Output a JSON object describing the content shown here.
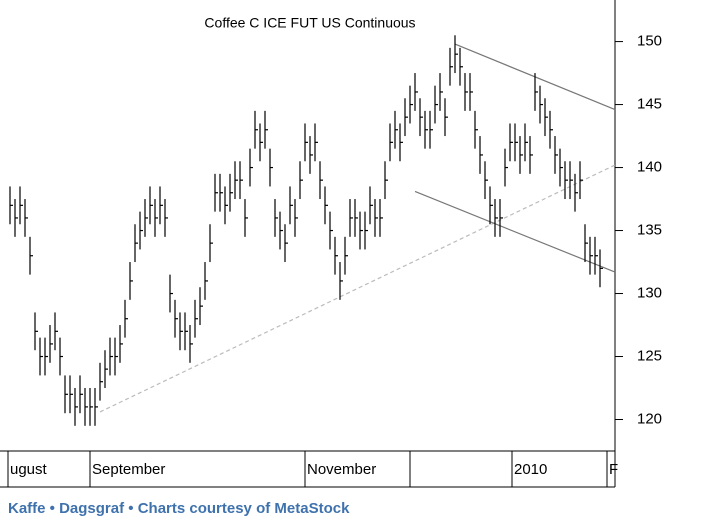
{
  "chart_data": {
    "type": "ohlc",
    "title": "Coffee C ICE FUT US Continuous",
    "ylim": [
      117.5,
      153.3
    ],
    "yticks": [
      120,
      125,
      130,
      135,
      140,
      145,
      150
    ],
    "color": "#000000",
    "x_ticks": [
      {
        "value": -0.4,
        "label": "ugust"
      },
      {
        "value": 16,
        "label": "September"
      },
      {
        "value": 59,
        "label": "November"
      },
      {
        "value": 80,
        "label": null
      },
      {
        "value": 100.4,
        "label": "2010"
      },
      {
        "value": 119.4,
        "label": "F"
      }
    ],
    "high": [
      138.5,
      137.5,
      138.5,
      137.5,
      134.5,
      128.5,
      126.5,
      126.5,
      127.5,
      128.5,
      126.5,
      123.5,
      123.5,
      122.5,
      123.5,
      122.5,
      122.5,
      122.5,
      124.5,
      125.5,
      126.5,
      126.5,
      127.5,
      129.5,
      132.5,
      135.5,
      136.5,
      137.5,
      138.5,
      137.5,
      138.5,
      137.5,
      131.5,
      129.5,
      128.5,
      128.5,
      127.5,
      129.5,
      130.5,
      132.5,
      135.5,
      139.5,
      139.5,
      138.5,
      139.5,
      140.5,
      140.5,
      137.5,
      141.5,
      144.5,
      143.5,
      144.5,
      141.5,
      137.5,
      136.5,
      135.5,
      138.5,
      137.5,
      140.5,
      143.5,
      142.5,
      143.5,
      140.5,
      138.5,
      136.5,
      134.5,
      132.5,
      134.5,
      137.5,
      137.5,
      136.5,
      136.5,
      138.5,
      137.5,
      137.5,
      140.5,
      143.5,
      144.5,
      143.5,
      145.5,
      146.5,
      147.5,
      145.5,
      144.5,
      144.5,
      146.5,
      147.5,
      145.5,
      149.5,
      150.5,
      149.5,
      147.5,
      147.5,
      144.5,
      142.5,
      140.5,
      138.5,
      137.5,
      137.5,
      141.5,
      143.5,
      143.5,
      142.5,
      143.5,
      142.5,
      147.5,
      146.5,
      145.5,
      144.5,
      142.5,
      141.5,
      140.5,
      140.5,
      139.5,
      140.5,
      135.5,
      134.5,
      134.5,
      133.5
    ],
    "low": [
      135.5,
      134.5,
      135.5,
      134.5,
      131.5,
      125.5,
      123.5,
      123.5,
      124.5,
      125.5,
      123.5,
      120.5,
      120.5,
      119.5,
      120.5,
      119.5,
      119.5,
      119.5,
      121.5,
      122.5,
      123.5,
      123.5,
      124.5,
      126.5,
      129.5,
      132.5,
      133.5,
      134.5,
      135.5,
      134.5,
      135.5,
      134.5,
      128.5,
      126.5,
      125.5,
      125.5,
      124.5,
      126.5,
      127.5,
      129.5,
      132.5,
      136.5,
      136.5,
      135.5,
      136.5,
      137.5,
      137.5,
      134.5,
      138.5,
      141.5,
      140.5,
      141.5,
      138.5,
      134.5,
      133.5,
      132.5,
      135.5,
      134.5,
      137.5,
      140.5,
      139.5,
      140.5,
      137.5,
      135.5,
      133.5,
      131.5,
      129.5,
      131.5,
      134.5,
      134.5,
      133.5,
      133.5,
      135.5,
      134.5,
      134.5,
      137.5,
      140.5,
      141.5,
      140.5,
      142.5,
      143.5,
      144.5,
      142.5,
      141.5,
      141.5,
      143.5,
      144.5,
      142.5,
      146.5,
      147.5,
      146.5,
      144.5,
      144.5,
      141.5,
      139.5,
      137.5,
      135.5,
      134.5,
      134.5,
      138.5,
      140.5,
      140.5,
      139.5,
      140.5,
      139.5,
      144.5,
      143.5,
      142.5,
      141.5,
      139.5,
      138.5,
      137.5,
      137.5,
      136.5,
      137.5,
      132.5,
      131.5,
      131.5,
      130.5
    ],
    "close": [
      137,
      136,
      137,
      136,
      133,
      127,
      125,
      125,
      126,
      127,
      125,
      122,
      122,
      121,
      122,
      121,
      121,
      121,
      123,
      124,
      125,
      125,
      126,
      128,
      131,
      134,
      135,
      136,
      137,
      136,
      137,
      136,
      130,
      128,
      127,
      127,
      126,
      128,
      129,
      131,
      134,
      138,
      138,
      137,
      138,
      139,
      139,
      136,
      140,
      143,
      142,
      143,
      140,
      136,
      135,
      134,
      137,
      136,
      139,
      142,
      141,
      142,
      139,
      137,
      135,
      133,
      131,
      133,
      136,
      136,
      135,
      135,
      137,
      136,
      136,
      139,
      142,
      143,
      142,
      144,
      145,
      146,
      144,
      143,
      143,
      145,
      146,
      144,
      148,
      149,
      148,
      146,
      146,
      143,
      141,
      139,
      137,
      136,
      136,
      140,
      142,
      142,
      141,
      142,
      141,
      146,
      145,
      144,
      143,
      141,
      140,
      139,
      139,
      138,
      139,
      134,
      133,
      133,
      132
    ],
    "trendlines": [
      {
        "x": [
          18,
          121
        ],
        "y": [
          120.6,
          140.2
        ],
        "style": "dashed",
        "color": "#bbbbbb"
      },
      {
        "x": [
          89,
          121
        ],
        "y": [
          149.8,
          144.6
        ],
        "style": "solid",
        "color": "#777777"
      },
      {
        "x": [
          81,
          121
        ],
        "y": [
          138.1,
          131.7
        ],
        "style": "solid",
        "color": "#777777"
      }
    ]
  },
  "footer": "Kaffe • Dagsgraf • Charts courtesy of MetaStock"
}
